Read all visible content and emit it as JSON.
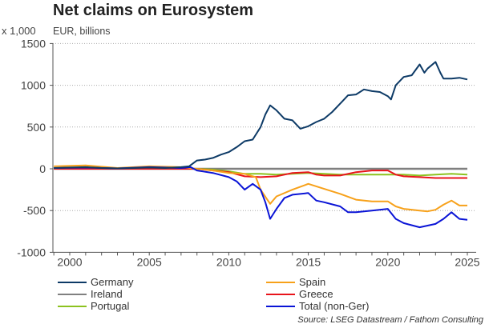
{
  "chart_data": {
    "type": "line",
    "title": "Net claims on Eurosystem",
    "scale_label": "x 1,000",
    "ylabel": "EUR, billions",
    "xlabel": "",
    "xlim": [
      1999,
      2025.5
    ],
    "ylim": [
      -1000,
      1500
    ],
    "yticks": [
      1500,
      1000,
      500,
      0,
      -500,
      -1000
    ],
    "xticks": [
      2000,
      2005,
      2010,
      2015,
      2020,
      2025
    ],
    "grid": "horizontal dotted",
    "legend_position": "bottom",
    "source": "Source: LSEG Datastream / Fathom Consulting",
    "series": [
      {
        "name": "Germany",
        "color": "#0d3a66",
        "x": [
          1999,
          2000,
          2001,
          2002,
          2003,
          2004,
          2005,
          2006,
          2007,
          2007.5,
          2008,
          2008.5,
          2009,
          2009.5,
          2010,
          2010.5,
          2011,
          2011.5,
          2012,
          2012.3,
          2012.6,
          2013,
          2013.5,
          2014,
          2014.5,
          2015,
          2015.5,
          2016,
          2016.5,
          2017,
          2017.5,
          2018,
          2018.5,
          2019,
          2019.5,
          2020,
          2020.2,
          2020.5,
          2021,
          2021.5,
          2022,
          2022.3,
          2022.5,
          2023,
          2023.3,
          2023.5,
          2024,
          2024.5,
          2025
        ],
        "y": [
          10,
          15,
          20,
          10,
          5,
          10,
          15,
          10,
          20,
          30,
          100,
          110,
          130,
          170,
          200,
          260,
          330,
          350,
          500,
          650,
          760,
          700,
          600,
          580,
          480,
          510,
          560,
          600,
          680,
          780,
          880,
          890,
          950,
          930,
          920,
          870,
          830,
          1000,
          1100,
          1120,
          1250,
          1150,
          1200,
          1280,
          1150,
          1080,
          1080,
          1090,
          1070
        ]
      },
      {
        "name": "Ireland",
        "color": "#808080",
        "x": [
          1999,
          2025
        ],
        "y": [
          0,
          0
        ]
      },
      {
        "name": "Portugal",
        "color": "#8cc21f",
        "x": [
          1999,
          2005,
          2008,
          2009,
          2010,
          2011,
          2012,
          2013,
          2014,
          2015,
          2016,
          2017,
          2018,
          2019,
          2020,
          2021,
          2022,
          2023,
          2024,
          2025
        ],
        "y": [
          5,
          0,
          0,
          -10,
          -30,
          -60,
          -60,
          -70,
          -60,
          -50,
          -60,
          -70,
          -70,
          -70,
          -70,
          -70,
          -80,
          -70,
          -60,
          -70
        ]
      },
      {
        "name": "Spain",
        "color": "#f7a11a",
        "x": [
          1999,
          2001,
          2003,
          2005,
          2007,
          2008,
          2009,
          2010,
          2011,
          2011.7,
          2012,
          2012.6,
          2013,
          2014,
          2015,
          2016,
          2017,
          2018,
          2019,
          2020,
          2020.5,
          2021,
          2022,
          2022.5,
          2023,
          2023.5,
          2024,
          2024.5,
          2025
        ],
        "y": [
          30,
          40,
          10,
          30,
          20,
          0,
          -20,
          -50,
          -60,
          -100,
          -250,
          -420,
          -330,
          -250,
          -180,
          -240,
          -300,
          -370,
          -390,
          -390,
          -450,
          -480,
          -500,
          -510,
          -490,
          -430,
          -380,
          -440,
          -440
        ]
      },
      {
        "name": "Greece",
        "color": "#e8141b",
        "x": [
          1999,
          2005,
          2008,
          2009,
          2010,
          2011,
          2012,
          2013,
          2014,
          2015,
          2015.5,
          2016,
          2017,
          2018,
          2019,
          2020,
          2020.5,
          2021,
          2022,
          2023,
          2024,
          2025
        ],
        "y": [
          0,
          0,
          0,
          -20,
          -40,
          -90,
          -100,
          -90,
          -50,
          -40,
          -70,
          -80,
          -80,
          -40,
          -20,
          -20,
          -70,
          -90,
          -100,
          -110,
          -110,
          -110
        ]
      },
      {
        "name": "Total (non-Ger)",
        "color": "#0a14d6",
        "x": [
          1999,
          2001,
          2003,
          2005,
          2007,
          2007.6,
          2008,
          2009,
          2010,
          2010.5,
          2011,
          2011.5,
          2012,
          2012.3,
          2012.6,
          2013,
          2013.5,
          2014,
          2015,
          2015.5,
          2016,
          2017,
          2017.5,
          2018,
          2019,
          2020,
          2020.5,
          2021,
          2022,
          2023,
          2023.5,
          2024,
          2024.5,
          2025
        ],
        "y": [
          10,
          15,
          5,
          20,
          10,
          20,
          -20,
          -50,
          -100,
          -150,
          -250,
          -180,
          -250,
          -400,
          -600,
          -480,
          -350,
          -310,
          -290,
          -380,
          -400,
          -450,
          -520,
          -520,
          -500,
          -480,
          -600,
          -650,
          -700,
          -660,
          -600,
          -520,
          -600,
          -610
        ]
      }
    ]
  }
}
